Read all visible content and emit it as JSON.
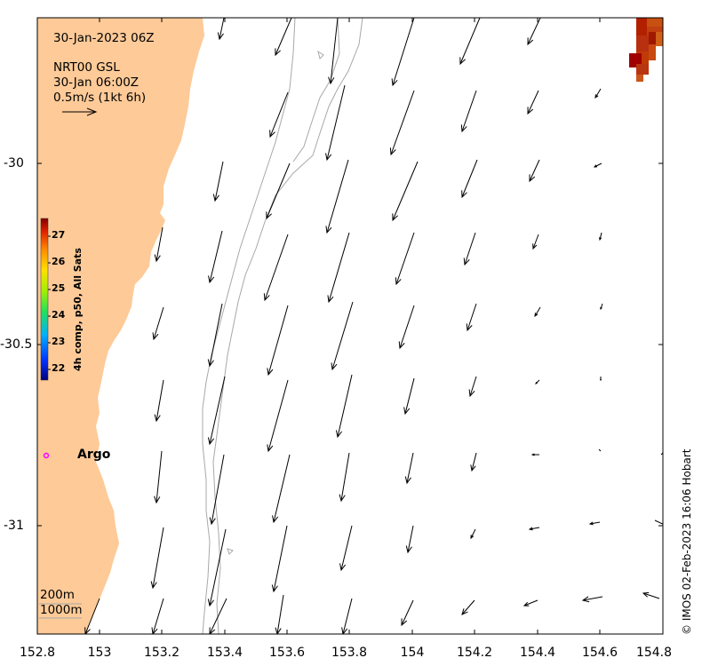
{
  "header": {
    "datetime": "30-Jan-2023 06Z",
    "source": "NRT00 GSL",
    "valid": "30-Jan 06:00Z",
    "scale": "0.5m/s (1kt 6h)"
  },
  "colorbar": {
    "title": "4h comp, p50, All Sats",
    "ticks": [
      "27",
      "26",
      "25",
      "24",
      "23",
      "22"
    ]
  },
  "axes": {
    "x_ticks": [
      "152.8",
      "153",
      "153.2",
      "153.4",
      "153.6",
      "153.8",
      "154",
      "154.2",
      "154.4",
      "154.6",
      "154.8"
    ],
    "y_ticks": [
      "-30",
      "-30.5",
      "-31"
    ]
  },
  "labels": {
    "argo": "Argo",
    "depth_200": "200m",
    "depth_1000": "1000m"
  },
  "credit": "© IMOS 02-Feb-2023 16:06 Hobart",
  "colors": {
    "land": "#fdca98",
    "sst_hot": "#b22000",
    "argo_marker": "#ff00ff",
    "bathymetry": "#a8a8a8"
  }
}
